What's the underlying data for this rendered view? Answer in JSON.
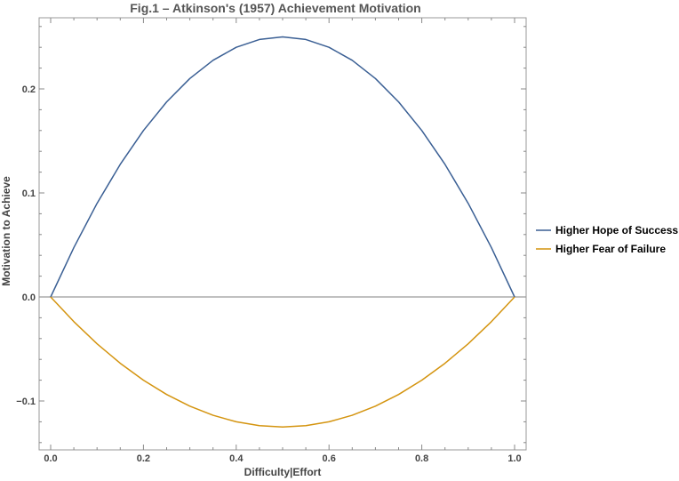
{
  "chart_data": {
    "type": "line",
    "title": "Fig.1 – Atkinson's (1957) Achievement Motivation",
    "xlabel": "Difficulty|Effort",
    "ylabel": "Motivation to Achieve",
    "xlim": [
      0.0,
      1.0
    ],
    "ylim": [
      -0.15,
      0.27
    ],
    "x_ticks": [
      0.0,
      0.2,
      0.4,
      0.6,
      0.8,
      1.0
    ],
    "x_tick_labels": [
      "0.0",
      "0.2",
      "0.4",
      "0.6",
      "0.8",
      "1.0"
    ],
    "y_ticks": [
      -0.1,
      0.0,
      0.1,
      0.2
    ],
    "y_tick_labels": [
      "−0.1",
      "0.0",
      "0.1",
      "0.2"
    ],
    "grid": false,
    "legend_position": "right",
    "x": [
      0.0,
      0.05,
      0.1,
      0.15,
      0.2,
      0.25,
      0.3,
      0.35,
      0.4,
      0.45,
      0.5,
      0.55,
      0.6,
      0.65,
      0.7,
      0.75,
      0.8,
      0.85,
      0.9,
      0.95,
      1.0
    ],
    "series": [
      {
        "name": "Higher Hope of Success",
        "color": "#3a5f94",
        "values": [
          0.0,
          0.0475,
          0.09,
          0.1275,
          0.16,
          0.1875,
          0.21,
          0.2275,
          0.24,
          0.2475,
          0.25,
          0.2475,
          0.24,
          0.2275,
          0.21,
          0.1875,
          0.16,
          0.1275,
          0.09,
          0.0475,
          0.0
        ]
      },
      {
        "name": "Higher Fear of Failure",
        "color": "#d4940f",
        "values": [
          0.0,
          -0.02375,
          -0.045,
          -0.06375,
          -0.08,
          -0.09375,
          -0.105,
          -0.11375,
          -0.12,
          -0.12375,
          -0.125,
          -0.12375,
          -0.12,
          -0.11375,
          -0.105,
          -0.09375,
          -0.08,
          -0.06375,
          -0.045,
          -0.02375,
          0.0
        ]
      }
    ]
  }
}
